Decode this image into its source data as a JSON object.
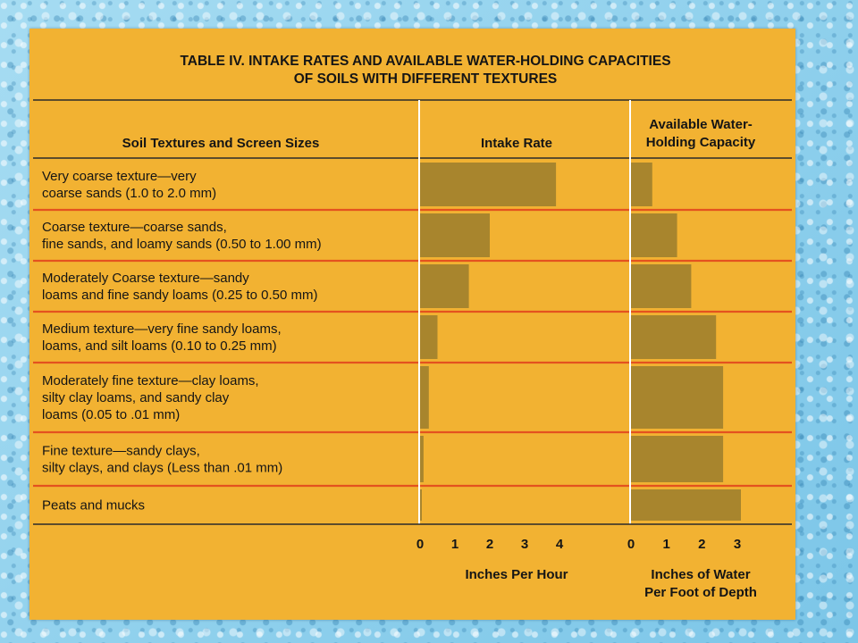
{
  "chart_data": {
    "type": "bar",
    "title_line1": "TABLE IV. INTAKE RATES AND AVAILABLE WATER-HOLDING CAPACITIES",
    "title_line2": "OF SOILS WITH DIFFERENT TEXTURES",
    "column_headers": {
      "soil": "Soil Textures and Screen Sizes",
      "intake": "Intake Rate",
      "water_line1": "Available Water-",
      "water_line2": "Holding Capacity"
    },
    "categories": [
      [
        "Very coarse texture—very",
        "coarse sands (1.0 to 2.0 mm)"
      ],
      [
        "Coarse texture—coarse sands,",
        "fine sands, and loamy sands (0.50 to 1.00 mm)"
      ],
      [
        "Moderately Coarse texture—sandy",
        "loams and fine sandy loams (0.25 to 0.50 mm)"
      ],
      [
        "Medium texture—very fine sandy loams,",
        "loams, and silt loams (0.10 to 0.25 mm)"
      ],
      [
        "Moderately fine texture—clay loams,",
        "silty clay loams, and sandy clay",
        "loams  (0.05 to  .01 mm)"
      ],
      [
        "Fine texture—sandy clays,",
        "silty clays, and clays (Less than .01 mm)"
      ],
      [
        "Peats and mucks"
      ]
    ],
    "series": [
      {
        "key": "intake",
        "values": [
          3.9,
          2.0,
          1.4,
          0.5,
          0.25,
          0.1,
          0.05
        ],
        "ticks": [
          0,
          1,
          2,
          3,
          4
        ],
        "xlim": [
          0,
          4
        ],
        "xlabel": [
          "Inches Per Hour"
        ]
      },
      {
        "key": "water",
        "values": [
          0.6,
          1.3,
          1.7,
          2.4,
          2.6,
          2.6,
          3.1
        ],
        "ticks": [
          0,
          1,
          2,
          3
        ],
        "xlim": [
          0,
          3
        ],
        "xlabel": [
          "Inches of Water",
          "Per Foot of Depth"
        ]
      }
    ],
    "grid": false,
    "colors": {
      "panel": "#f2b232",
      "bar": "#a8852d",
      "separator": "#e4521f",
      "rule": "#2a2a2a",
      "axis": "#ffffff"
    }
  }
}
